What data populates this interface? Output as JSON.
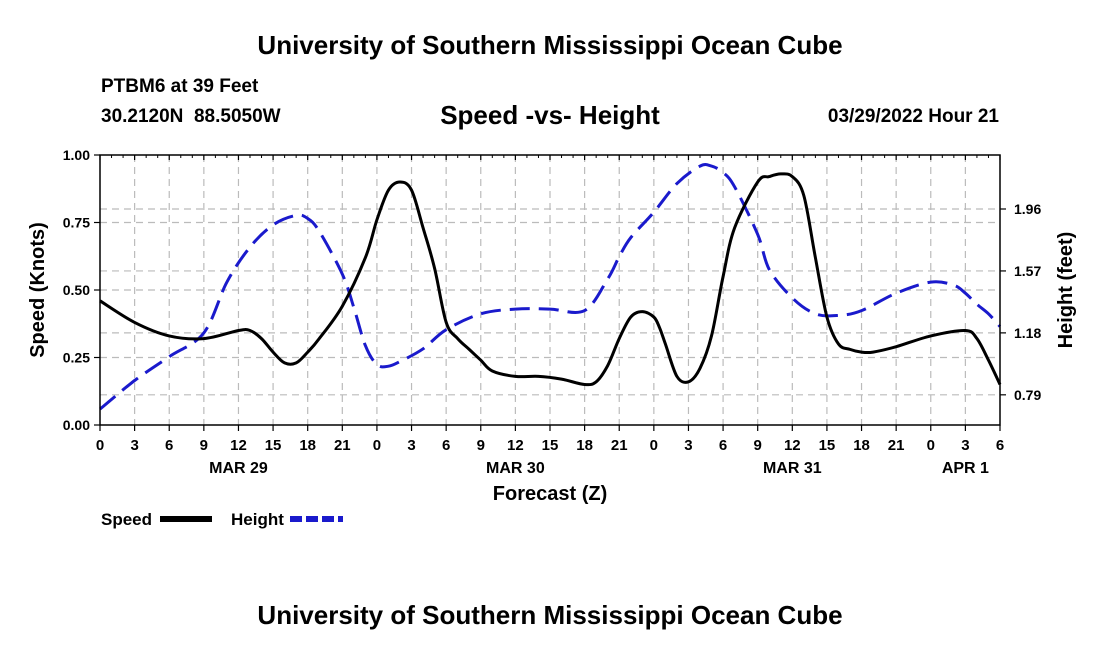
{
  "header": {
    "title": "University of Southern Mississippi Ocean Cube",
    "station": "PTBM6 at 39 Feet",
    "coords": "30.2120N  88.5050W",
    "subtitle": "Speed -vs- Height",
    "datetime": "03/29/2022 Hour 21"
  },
  "footer": {
    "title": "University of Southern Mississippi Ocean Cube"
  },
  "chart_data": {
    "type": "line",
    "title": "Speed -vs- Height",
    "xlabel": "Forecast (Z)",
    "ylabel": "Speed (Knots)",
    "y2label": "Height (feet)",
    "xlim": [
      0,
      78
    ],
    "ylim": [
      0,
      1
    ],
    "y2lim": [
      0.6,
      2.3
    ],
    "grid": true,
    "x_ticks": [
      0,
      3,
      6,
      9,
      12,
      15,
      18,
      21,
      24,
      27,
      30,
      33,
      36,
      39,
      42,
      45,
      48,
      51,
      54,
      57,
      60,
      63,
      66,
      69,
      72,
      75,
      78
    ],
    "x_tick_labels": [
      "0",
      "3",
      "6",
      "9",
      "12",
      "15",
      "18",
      "21",
      "0",
      "3",
      "6",
      "9",
      "12",
      "15",
      "18",
      "21",
      "0",
      "3",
      "6",
      "9",
      "12",
      "15",
      "18",
      "21",
      "0",
      "3",
      "6"
    ],
    "day_labels": [
      {
        "x": 12,
        "label": "MAR 29"
      },
      {
        "x": 36,
        "label": "MAR 30"
      },
      {
        "x": 60,
        "label": "MAR 31"
      },
      {
        "x": 75,
        "label": "APR 1"
      }
    ],
    "y_ticks": [
      0,
      0.25,
      0.5,
      0.75,
      1.0
    ],
    "y_tick_labels": [
      "0.00",
      "0.25",
      "0.50",
      "0.75",
      "1.00"
    ],
    "y2_ticks": [
      0.79,
      1.18,
      1.57,
      1.96
    ],
    "y2_tick_labels": [
      "0.79",
      "1.18",
      "1.57",
      "1.96"
    ],
    "legend": {
      "placement": "bottom-left",
      "entries": [
        {
          "label": "Speed",
          "color": "#000000",
          "style": "solid"
        },
        {
          "label": "Height",
          "color": "#1a1acc",
          "style": "dashed"
        }
      ]
    },
    "series": [
      {
        "name": "Speed",
        "axis": "left",
        "color": "#000000",
        "style": "solid",
        "x": [
          0,
          3,
          6,
          9,
          12,
          13,
          14,
          15,
          16,
          17,
          18,
          19,
          21,
          23,
          24,
          25,
          26,
          27,
          28,
          29,
          30,
          31,
          32,
          33,
          34,
          36,
          38,
          40,
          42,
          43,
          44,
          45,
          46,
          47,
          48,
          48.5,
          49,
          50,
          51,
          52,
          53,
          54,
          55,
          57,
          58,
          59,
          60,
          61,
          62,
          63,
          64,
          65,
          66,
          67,
          69,
          72,
          75,
          76,
          77,
          78
        ],
        "y": [
          0.46,
          0.38,
          0.33,
          0.32,
          0.35,
          0.35,
          0.32,
          0.27,
          0.23,
          0.23,
          0.27,
          0.32,
          0.44,
          0.62,
          0.76,
          0.87,
          0.9,
          0.87,
          0.73,
          0.58,
          0.38,
          0.32,
          0.28,
          0.24,
          0.2,
          0.18,
          0.18,
          0.17,
          0.15,
          0.16,
          0.22,
          0.32,
          0.4,
          0.42,
          0.4,
          0.36,
          0.3,
          0.18,
          0.16,
          0.21,
          0.33,
          0.55,
          0.73,
          0.9,
          0.92,
          0.93,
          0.92,
          0.85,
          0.62,
          0.4,
          0.3,
          0.28,
          0.27,
          0.27,
          0.29,
          0.33,
          0.35,
          0.32,
          0.24,
          0.15
        ]
      },
      {
        "name": "Height",
        "axis": "right",
        "color": "#1a1acc",
        "style": "dashed",
        "x": [
          0,
          3,
          6,
          9,
          11,
          13,
          15,
          17,
          18,
          19,
          21,
          22,
          23,
          24,
          25,
          26,
          28,
          30,
          33,
          36,
          39,
          42,
          44,
          45,
          46,
          48,
          50,
          52,
          53,
          54,
          55,
          57,
          58,
          60,
          62,
          64,
          66,
          69,
          72,
          74,
          75,
          76,
          77,
          78
        ],
        "y": [
          0.7,
          0.88,
          1.03,
          1.18,
          1.5,
          1.72,
          1.86,
          1.92,
          1.9,
          1.82,
          1.55,
          1.34,
          1.1,
          0.98,
          0.97,
          1.0,
          1.08,
          1.2,
          1.3,
          1.33,
          1.33,
          1.32,
          1.52,
          1.66,
          1.78,
          1.94,
          2.12,
          2.23,
          2.23,
          2.19,
          2.1,
          1.8,
          1.58,
          1.4,
          1.3,
          1.29,
          1.32,
          1.43,
          1.5,
          1.48,
          1.43,
          1.36,
          1.3,
          1.22
        ]
      }
    ]
  }
}
